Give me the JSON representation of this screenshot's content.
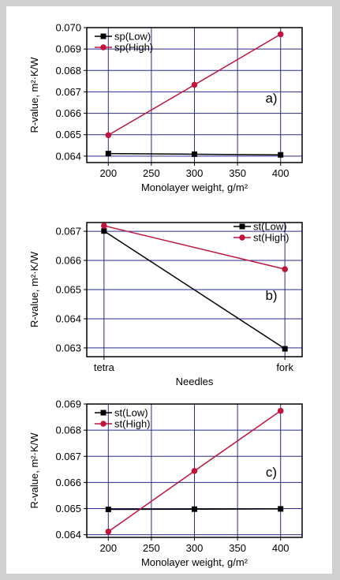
{
  "colors": {
    "low": "#000000",
    "high": "#c0143c",
    "grid": "#2a2a8c",
    "frame": "#d0d0d0"
  },
  "chart_data": [
    {
      "type": "line",
      "panel_label": "a)",
      "x": [
        200,
        300,
        400
      ],
      "xticks": [
        "200",
        "250",
        "300",
        "350",
        "400"
      ],
      "xlim": [
        175,
        425
      ],
      "xlabel": "Monolayer weight, g/m²",
      "ylabel": "R-value, m²·K/W",
      "ylim": [
        0.0637,
        0.07
      ],
      "yticks": [
        "0.064",
        "0.065",
        "0.066",
        "0.067",
        "0.068",
        "0.069",
        "0.070"
      ],
      "legend": "top-left",
      "grid": true,
      "series": [
        {
          "name": "sp(Low)",
          "values": [
            0.06412,
            0.06409,
            0.06406
          ]
        },
        {
          "name": "sp(High)",
          "values": [
            0.06498,
            0.06733,
            0.06969
          ]
        }
      ]
    },
    {
      "type": "line",
      "panel_label": "b)",
      "x": [
        "tetra",
        "fork"
      ],
      "xticks": [
        "tetra",
        "fork"
      ],
      "xlabel": "Needles",
      "ylabel": "R-value, m²·K/W",
      "ylim": [
        0.0627,
        0.0673
      ],
      "yticks": [
        "0.063",
        "0.064",
        "0.065",
        "0.066",
        "0.067"
      ],
      "legend": "top-right",
      "grid": true,
      "series": [
        {
          "name": "st(Low)",
          "values": [
            0.06701,
            0.06297
          ]
        },
        {
          "name": "st(High)",
          "values": [
            0.06719,
            0.0657
          ]
        }
      ]
    },
    {
      "type": "line",
      "panel_label": "c)",
      "x": [
        200,
        300,
        400
      ],
      "xticks": [
        "200",
        "250",
        "300",
        "350",
        "400"
      ],
      "xlim": [
        175,
        425
      ],
      "xlabel": "Monolayer weight, g/m²",
      "ylabel": "R-value, m²·K/W",
      "ylim": [
        0.0639,
        0.069
      ],
      "yticks": [
        "0.064",
        "0.065",
        "0.066",
        "0.067",
        "0.068",
        "0.069"
      ],
      "legend": "top-left",
      "grid": true,
      "series": [
        {
          "name": "st(Low)",
          "values": [
            0.06497,
            0.06498,
            0.06499
          ]
        },
        {
          "name": "st(High)",
          "values": [
            0.06412,
            0.06644,
            0.06874
          ]
        }
      ]
    }
  ]
}
